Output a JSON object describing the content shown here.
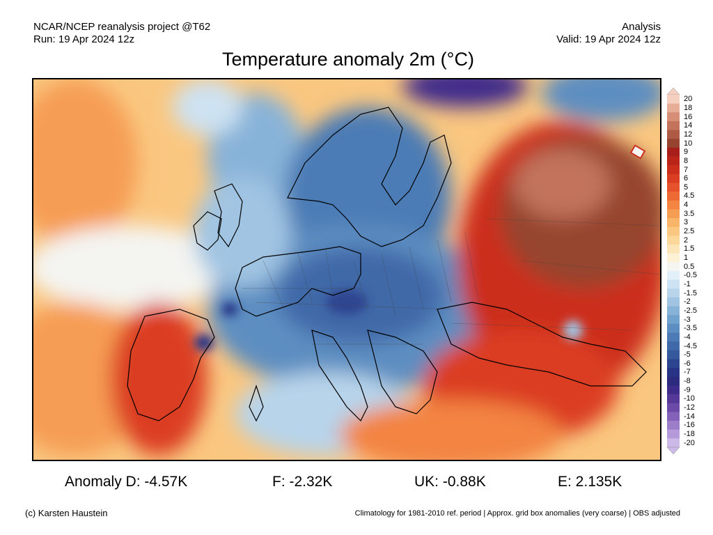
{
  "header": {
    "line1_left": "NCAR/NCEP reanalysis project @T62",
    "line2_left": "Run: 19 Apr 2024 12z",
    "line1_right": "Analysis",
    "line2_right": "Valid: 19 Apr 2024 12z"
  },
  "title": "Temperature anomaly 2m (°C)",
  "colorbar": {
    "labels": [
      "20",
      "18",
      "16",
      "14",
      "12",
      "10",
      "9",
      "8",
      "7",
      "6",
      "5",
      "4.5",
      "4",
      "3.5",
      "3",
      "2.5",
      "2",
      "1.5",
      "1",
      "0.5",
      "-0.5",
      "-1",
      "-1.5",
      "-2",
      "-2.5",
      "-3",
      "-3.5",
      "-4",
      "-4.5",
      "-5",
      "-6",
      "-7",
      "-8",
      "-9",
      "-10",
      "-12",
      "-14",
      "-16",
      "-18",
      "-20"
    ],
    "colors": [
      "#f5cfbf",
      "#e8ad97",
      "#d68f76",
      "#c3735b",
      "#ad5b44",
      "#96442f",
      "#a81e1a",
      "#bb2419",
      "#cc2e1c",
      "#db3d22",
      "#e5522b",
      "#ed6a35",
      "#f38442",
      "#f69d54",
      "#f8b468",
      "#fac780",
      "#fbd79a",
      "#fce5b6",
      "#fdf1d6",
      "#f4f4f1",
      "#e2eef8",
      "#cde2f2",
      "#b7d4ea",
      "#a0c4e2",
      "#88b3d8",
      "#71a1cd",
      "#5d8ec1",
      "#4c7bb5",
      "#3f69a8",
      "#36589c",
      "#2d4590",
      "#283485",
      "#2c2a7e",
      "#3f2b8b",
      "#553898",
      "#6c4ba8",
      "#8462b9",
      "#9c7dca",
      "#b59ad9",
      "#cdb9e8"
    ]
  },
  "map_palette": {
    "ocean_warm": "#f8b468",
    "ocean_white": "#f4f4f1",
    "europe_blue": "#5d8ec1",
    "europe_dark": "#3f69a8",
    "east_red": "#cc2e1c",
    "east_brown": "#96442f",
    "east_light_brown": "#c3735b",
    "deep_purple": "#3f2b8b"
  },
  "anomalies": {
    "d": "Anomaly D: -4.57K",
    "f": "F: -2.32K",
    "uk": "UK: -0.88K",
    "e": "E: 2.135K"
  },
  "footer": {
    "left": "(c) Karsten Haustein",
    "right": "Climatology for 1981-2010 ref. period | Approx. grid box anomalies (very coarse) | OBS adjusted"
  }
}
